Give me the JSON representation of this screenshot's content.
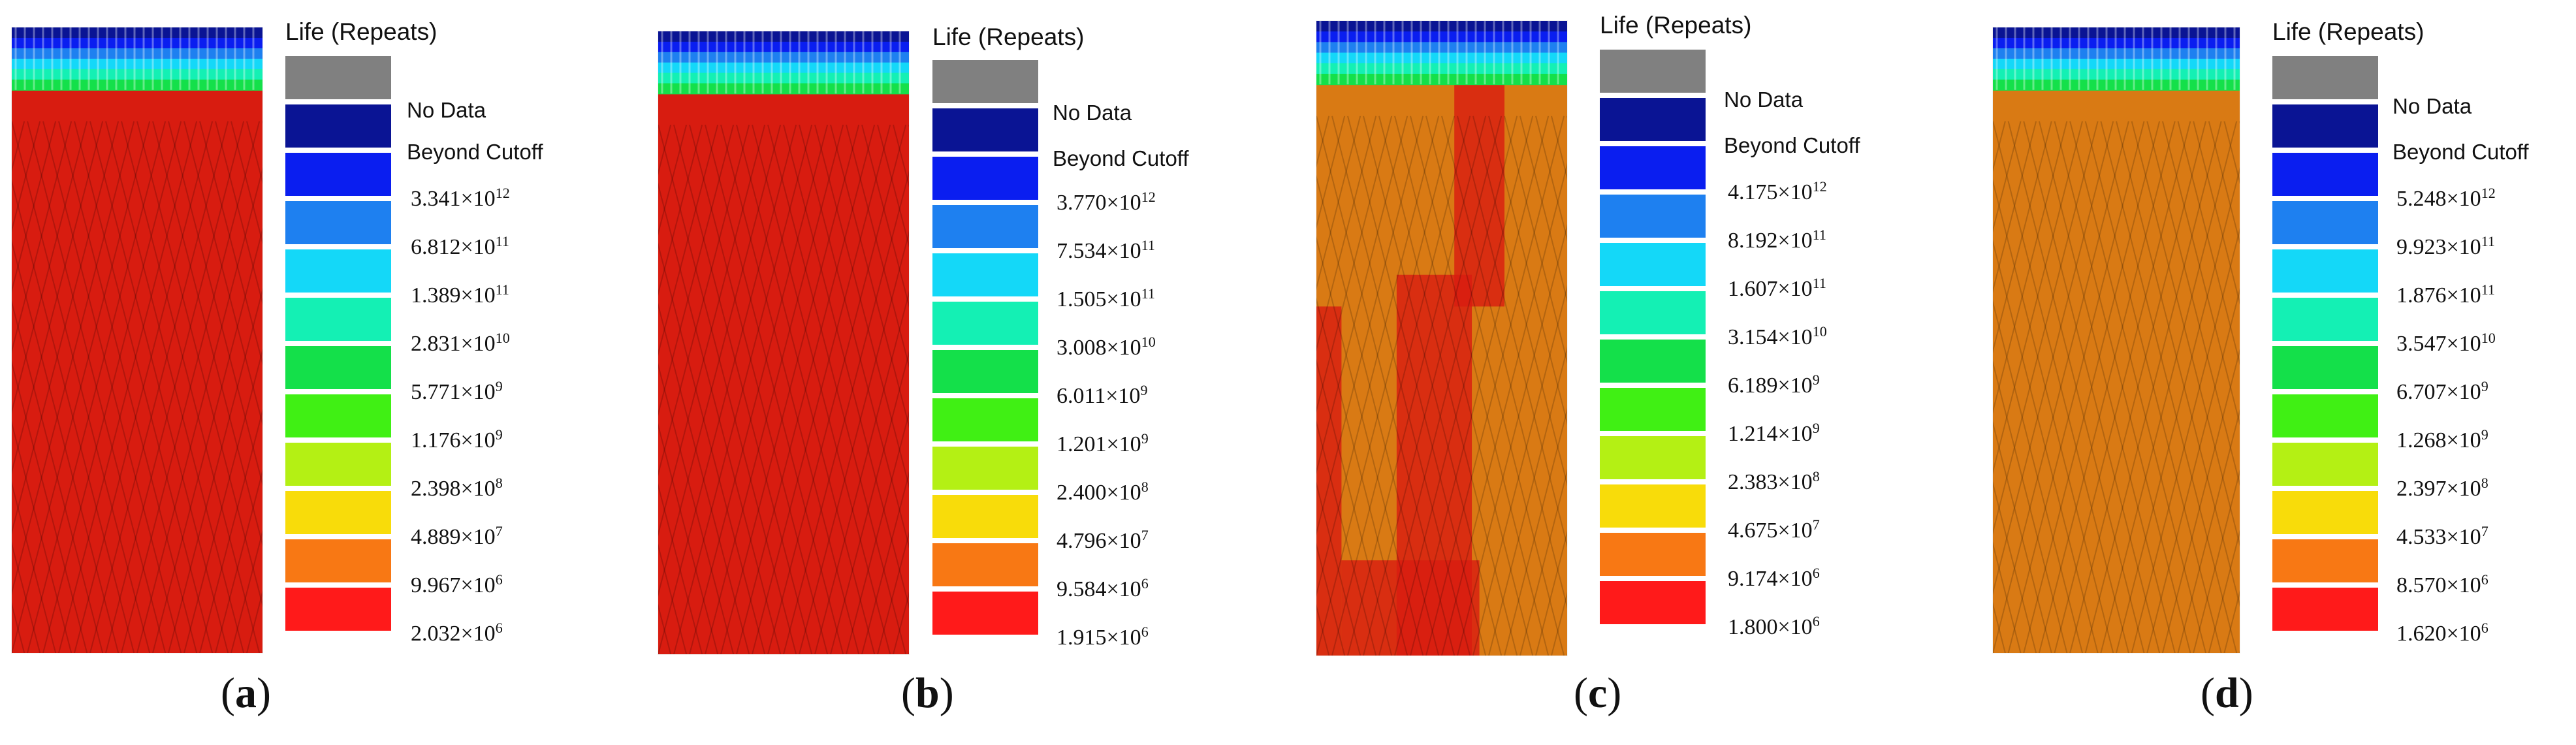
{
  "legend_title": "Life (Repeats)",
  "colors": {
    "no_data": "#808080",
    "beyond_cutoff": "#0a1494",
    "levels": [
      "#0a1ef0",
      "#1e80f0",
      "#14d8f8",
      "#14f0b4",
      "#14e04a",
      "#40f014",
      "#b4f014",
      "#f8dc0a",
      "#f87814",
      "#ff1a1a"
    ],
    "contour_red": "#d81c10",
    "contour_orange": "#d97a14"
  },
  "panels": [
    {
      "id": "a",
      "caption": {
        "open": "(",
        "letter": "a",
        "close": ")"
      },
      "legend": {
        "no_data": "No Data",
        "beyond_cutoff": "Beyond Cutoff",
        "values": [
          {
            "mantissa": "3.341",
            "times": "×10",
            "exponent": "12"
          },
          {
            "mantissa": "6.812",
            "times": "×10",
            "exponent": "11"
          },
          {
            "mantissa": "1.389",
            "times": "×10",
            "exponent": "11"
          },
          {
            "mantissa": "2.831",
            "times": "×10",
            "exponent": "10"
          },
          {
            "mantissa": "5.771",
            "times": "×10",
            "exponent": "9"
          },
          {
            "mantissa": "1.176",
            "times": "×10",
            "exponent": "9"
          },
          {
            "mantissa": "2.398",
            "times": "×10",
            "exponent": "8"
          },
          {
            "mantissa": "4.889",
            "times": "×10",
            "exponent": "7"
          },
          {
            "mantissa": "9.967",
            "times": "×10",
            "exponent": "6"
          },
          {
            "mantissa": "2.032",
            "times": "×10",
            "exponent": "6"
          }
        ]
      },
      "body_tone": "red"
    },
    {
      "id": "b",
      "caption": {
        "open": "(",
        "letter": "b",
        "close": ")"
      },
      "legend": {
        "no_data": "No Data",
        "beyond_cutoff": "Beyond Cutoff",
        "values": [
          {
            "mantissa": "3.770",
            "times": "×10",
            "exponent": "12"
          },
          {
            "mantissa": "7.534",
            "times": "×10",
            "exponent": "11"
          },
          {
            "mantissa": "1.505",
            "times": "×10",
            "exponent": "11"
          },
          {
            "mantissa": "3.008",
            "times": "×10",
            "exponent": "10"
          },
          {
            "mantissa": "6.011",
            "times": "×10",
            "exponent": "9"
          },
          {
            "mantissa": "1.201",
            "times": "×10",
            "exponent": "9"
          },
          {
            "mantissa": "2.400",
            "times": "×10",
            "exponent": "8"
          },
          {
            "mantissa": "4.796",
            "times": "×10",
            "exponent": "7"
          },
          {
            "mantissa": "9.584",
            "times": "×10",
            "exponent": "6"
          },
          {
            "mantissa": "1.915",
            "times": "×10",
            "exponent": "6"
          }
        ]
      },
      "body_tone": "red"
    },
    {
      "id": "c",
      "caption": {
        "open": "(",
        "letter": "c",
        "close": ")"
      },
      "legend": {
        "no_data": "No Data",
        "beyond_cutoff": "Beyond Cutoff",
        "values": [
          {
            "mantissa": "4.175",
            "times": "×10",
            "exponent": "12"
          },
          {
            "mantissa": "8.192",
            "times": "×10",
            "exponent": "11"
          },
          {
            "mantissa": "1.607",
            "times": "×10",
            "exponent": "11"
          },
          {
            "mantissa": "3.154",
            "times": "×10",
            "exponent": "10"
          },
          {
            "mantissa": "6.189",
            "times": "×10",
            "exponent": "9"
          },
          {
            "mantissa": "1.214",
            "times": "×10",
            "exponent": "9"
          },
          {
            "mantissa": "2.383",
            "times": "×10",
            "exponent": "8"
          },
          {
            "mantissa": "4.675",
            "times": "×10",
            "exponent": "7"
          },
          {
            "mantissa": "9.174",
            "times": "×10",
            "exponent": "6"
          },
          {
            "mantissa": "1.800",
            "times": "×10",
            "exponent": "6"
          }
        ]
      },
      "body_tone": "mixed"
    },
    {
      "id": "d",
      "caption": {
        "open": "(",
        "letter": "d",
        "close": ")"
      },
      "legend": {
        "no_data": "No Data",
        "beyond_cutoff": "Beyond Cutoff",
        "values": [
          {
            "mantissa": "5.248",
            "times": "×10",
            "exponent": "12"
          },
          {
            "mantissa": "9.923",
            "times": "×10",
            "exponent": "11"
          },
          {
            "mantissa": "1.876",
            "times": "×10",
            "exponent": "11"
          },
          {
            "mantissa": "3.547",
            "times": "×10",
            "exponent": "10"
          },
          {
            "mantissa": "6.707",
            "times": "×10",
            "exponent": "9"
          },
          {
            "mantissa": "1.268",
            "times": "×10",
            "exponent": "9"
          },
          {
            "mantissa": "2.397",
            "times": "×10",
            "exponent": "8"
          },
          {
            "mantissa": "4.533",
            "times": "×10",
            "exponent": "7"
          },
          {
            "mantissa": "8.570",
            "times": "×10",
            "exponent": "6"
          },
          {
            "mantissa": "1.620",
            "times": "×10",
            "exponent": "6"
          }
        ]
      },
      "body_tone": "orange"
    }
  ]
}
